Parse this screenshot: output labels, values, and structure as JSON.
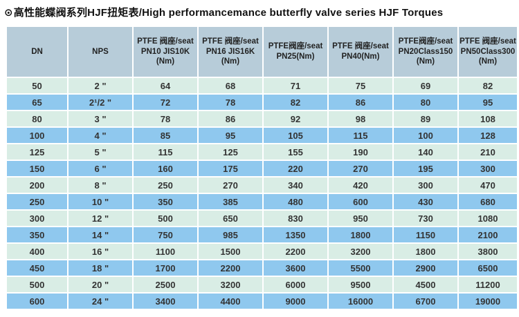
{
  "header": {
    "bullet_icon": "⊙",
    "title": "高性能蝶阀系列HJF扭矩表/High performancemance butterfly valve series HJF Torques"
  },
  "colors": {
    "header_bg": "#b7ccd9",
    "row_light": "#d9ede5",
    "row_blue": "#8fc8ee",
    "text": "#333333",
    "title_text": "#111111"
  },
  "table": {
    "columns": [
      "DN",
      "NPS",
      "PTFE 阀座/seat\nPN10 JIS10K\n(Nm)",
      "PTFE 阀座/seat\nPN16 JIS16K\n(Nm)",
      "PTFE阀座/seat\nPN25(Nm)",
      "PTFE 阀座/seat\nPN40(Nm)",
      "PTFE阀座/seat\nPN20Class150\n(Nm)",
      "PTFE 阀座/seat\nPN50Class300\n(Nm)"
    ],
    "rows": [
      [
        "50",
        "2 \"",
        "64",
        "68",
        "71",
        "75",
        "69",
        "82"
      ],
      [
        "65",
        "2¹/2 \"",
        "72",
        "78",
        "82",
        "86",
        "80",
        "95"
      ],
      [
        "80",
        "3 \"",
        "78",
        "86",
        "92",
        "98",
        "89",
        "108"
      ],
      [
        "100",
        "4 \"",
        "85",
        "95",
        "105",
        "115",
        "100",
        "128"
      ],
      [
        "125",
        "5 \"",
        "115",
        "125",
        "155",
        "190",
        "140",
        "210"
      ],
      [
        "150",
        "6 \"",
        "160",
        "175",
        "220",
        "270",
        "195",
        "300"
      ],
      [
        "200",
        "8 \"",
        "250",
        "270",
        "340",
        "420",
        "300",
        "470"
      ],
      [
        "250",
        "10 \"",
        "350",
        "385",
        "480",
        "600",
        "430",
        "680"
      ],
      [
        "300",
        "12 \"",
        "500",
        "650",
        "830",
        "950",
        "730",
        "1080"
      ],
      [
        "350",
        "14 \"",
        "750",
        "985",
        "1350",
        "1800",
        "1150",
        "2100"
      ],
      [
        "400",
        "16 \"",
        "1100",
        "1500",
        "2200",
        "3200",
        "1800",
        "3800"
      ],
      [
        "450",
        "18 \"",
        "1700",
        "2200",
        "3600",
        "5500",
        "2900",
        "6500"
      ],
      [
        "500",
        "20 \"",
        "2500",
        "3200",
        "6000",
        "9500",
        "4500",
        "11200"
      ],
      [
        "600",
        "24 \"",
        "3400",
        "4400",
        "9000",
        "16000",
        "6700",
        "19000"
      ]
    ]
  }
}
